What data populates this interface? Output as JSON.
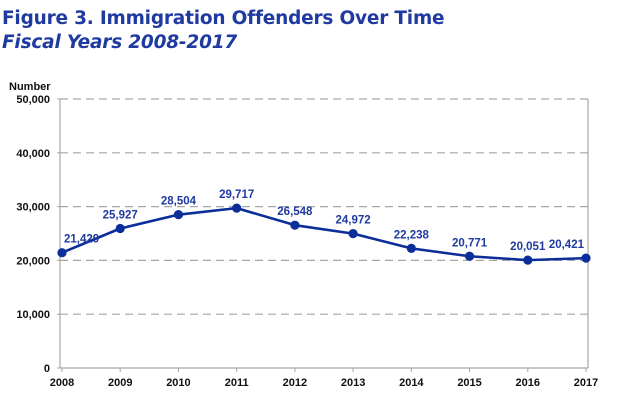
{
  "header": {
    "title": "Figure 3. Immigration Offenders Over Time",
    "subtitle": "Fiscal Years 2008-2017"
  },
  "colors": {
    "title": "#1f3aa0",
    "series": "#0b2e9a",
    "grid": "#a6a6a6",
    "axis": "#a6a6a6"
  },
  "chart_data": {
    "type": "line",
    "title": "Figure 3. Immigration Offenders Over Time",
    "subtitle": "Fiscal Years 2008-2017",
    "xlabel": "",
    "ylabel": "Number",
    "x": [
      "2008",
      "2009",
      "2010",
      "2011",
      "2012",
      "2013",
      "2014",
      "2015",
      "2016",
      "2017"
    ],
    "series": [
      {
        "name": "Immigration Offenders",
        "values": [
          21429,
          25927,
          28504,
          29717,
          26548,
          24972,
          22238,
          20771,
          20051,
          20421
        ],
        "labels": [
          "21,429",
          "25,927",
          "28,504",
          "29,717",
          "26,548",
          "24,972",
          "22,238",
          "20,771",
          "20,051",
          "20,421"
        ]
      }
    ],
    "ylim": [
      0,
      50000
    ],
    "yticks": [
      0,
      10000,
      20000,
      30000,
      40000,
      50000
    ],
    "ytick_labels": [
      "0",
      "10,000",
      "20,000",
      "30,000",
      "40,000",
      "50,000"
    ],
    "grid": true,
    "grid_style": "dashed-horizontal",
    "legend": "none",
    "markers": true,
    "data_labels": true
  }
}
